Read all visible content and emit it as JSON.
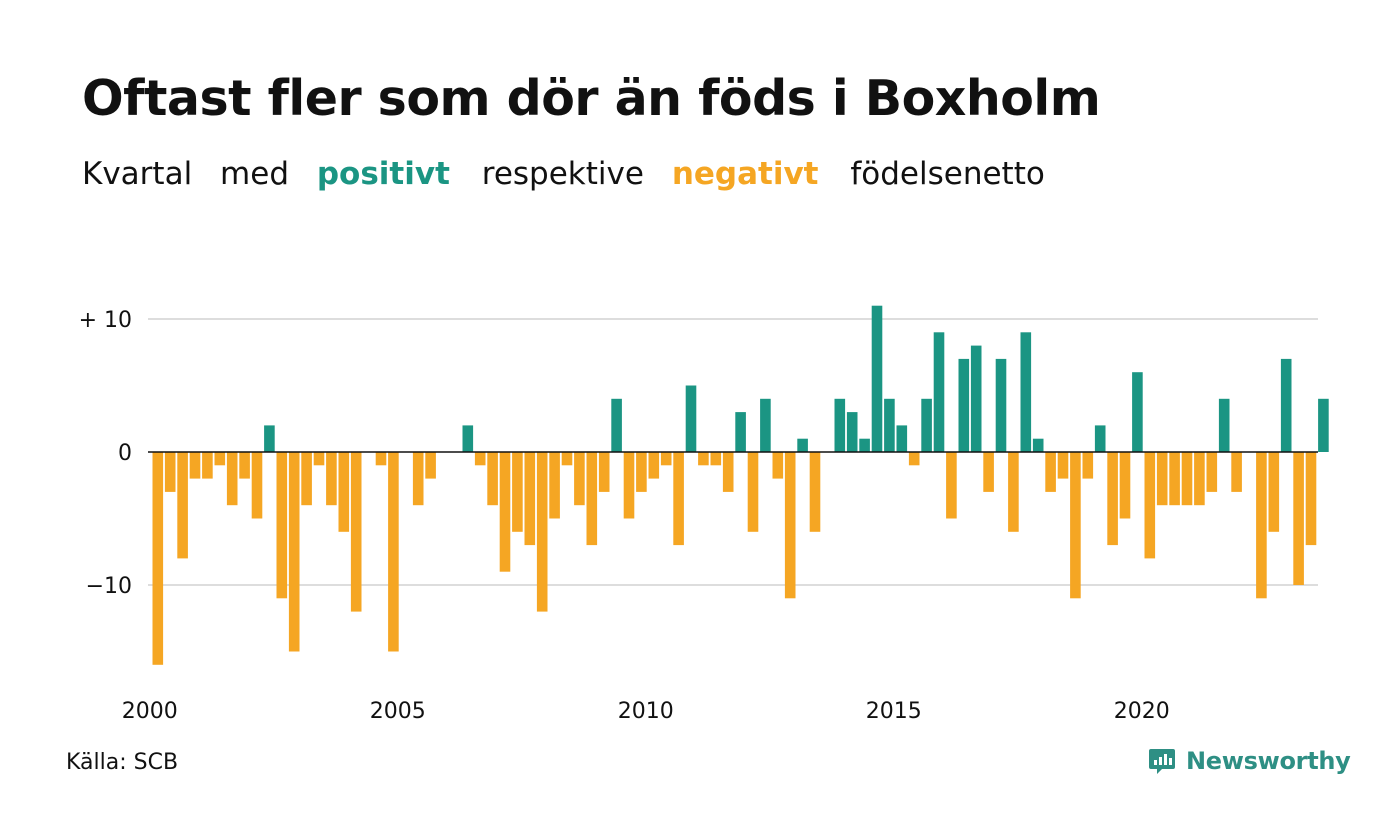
{
  "title": "Oftast fler som dör än föds i Boxholm",
  "subtitle": {
    "part1": "Kvartal",
    "part2": "med",
    "positive": "positivt",
    "part3": "respektive",
    "negative": "negativt",
    "part4": "födelsenetto"
  },
  "source": "Källa: SCB",
  "brand": "Newsworthy",
  "colors": {
    "positive": "#1b9583",
    "negative": "#f5a623",
    "grid": "#dddddd",
    "zero": "#111111",
    "brand": "#2e8f84"
  },
  "chart_data": {
    "type": "bar",
    "x_start": "2000 Q1",
    "ylim": [
      -16,
      11
    ],
    "yticks": [
      10,
      0,
      -10
    ],
    "ytick_labels": [
      "+ 10",
      "0",
      "−10"
    ],
    "xtick_labels": [
      "2000",
      "2005",
      "2010",
      "2015",
      "2020"
    ],
    "grid": true,
    "values": [
      -16,
      -3,
      -8,
      -2,
      -2,
      -1,
      -4,
      -2,
      -5,
      2,
      -11,
      -15,
      -4,
      -1,
      -4,
      -6,
      -12,
      0,
      -1,
      -15,
      0,
      -4,
      -2,
      0,
      0,
      2,
      -1,
      -4,
      -9,
      -6,
      -7,
      -12,
      -5,
      -1,
      -4,
      -7,
      -3,
      4,
      -5,
      -3,
      -2,
      -1,
      -7,
      5,
      -1,
      -1,
      -3,
      3,
      -6,
      4,
      -2,
      -11,
      1,
      -6,
      0,
      4,
      3,
      1,
      11,
      4,
      2,
      -1,
      4,
      9,
      -5,
      7,
      8,
      -3,
      7,
      -6,
      9,
      1,
      -3,
      -2,
      -11,
      -2,
      2,
      -7,
      -5,
      6,
      -8,
      -4,
      -4,
      -4,
      -4,
      -3,
      4,
      -3,
      0,
      -11,
      -6,
      7,
      -10,
      -7,
      4
    ]
  }
}
